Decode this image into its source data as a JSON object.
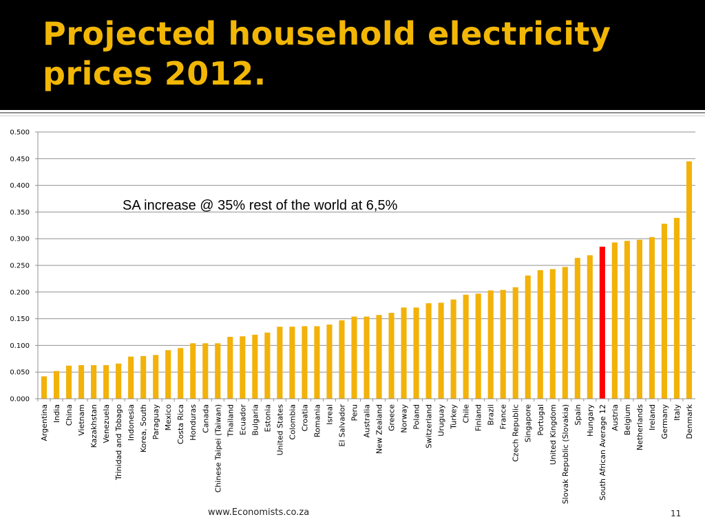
{
  "slide": {
    "title": "Projected household electricity prices 2012.",
    "annotation": "SA increase @ 35% rest of the world at 6,5%",
    "footer_url": "www.Economists.co.za",
    "page_number": "11"
  },
  "colors": {
    "bar": "#f2b20a",
    "highlight": "#ff0000",
    "title": "#f2b705",
    "title_background": "#000000"
  },
  "chart_data": {
    "type": "bar",
    "title": "",
    "xlabel": "",
    "ylabel": "",
    "ylim": [
      0,
      0.5
    ],
    "yticks": [
      "0.000",
      "0.050",
      "0.100",
      "0.150",
      "0.200",
      "0.250",
      "0.300",
      "0.350",
      "0.400",
      "0.450",
      "0.500"
    ],
    "grid": true,
    "highlight_category": "South African Average 12",
    "categories": [
      "Argentina",
      "India",
      "China",
      "Vietnam",
      "Kazakhstan",
      "Venezuela",
      "Trinidad and Tobago",
      "Indonesia",
      "Korea, South",
      "Paraguay",
      "Mexico",
      "Costa Rica",
      "Honduras",
      "Canada",
      "Chinese Taipei (Taiwan)",
      "Thailand",
      "Ecuador",
      "Bulgaria",
      "Estonia",
      "United States",
      "Colombia",
      "Croatia",
      "Romania",
      "Isreal",
      "El Salvador",
      "Peru",
      "Australia",
      "New Zealand",
      "Greece",
      "Norway",
      "Poland",
      "Switzerland",
      "Uruguay",
      "Turkey",
      "Chile",
      "Finland",
      "Brazil",
      "France",
      "Czech Republic",
      "Singapore",
      "Portugal",
      "United Kingdom",
      "Slovak Republic (Slovakia)",
      "Spain",
      "Hungary",
      "South African Average 12",
      "Austria",
      "Belgium",
      "Netherlands",
      "Ireland",
      "Germany",
      "Italy",
      "Denmark"
    ],
    "values": [
      0.042,
      0.052,
      0.062,
      0.063,
      0.063,
      0.063,
      0.066,
      0.079,
      0.08,
      0.082,
      0.091,
      0.095,
      0.104,
      0.104,
      0.104,
      0.116,
      0.117,
      0.12,
      0.124,
      0.135,
      0.135,
      0.136,
      0.136,
      0.139,
      0.147,
      0.154,
      0.154,
      0.157,
      0.161,
      0.171,
      0.171,
      0.179,
      0.18,
      0.186,
      0.195,
      0.197,
      0.203,
      0.204,
      0.209,
      0.231,
      0.241,
      0.243,
      0.247,
      0.264,
      0.269,
      0.285,
      0.293,
      0.296,
      0.298,
      0.303,
      0.328,
      0.339,
      0.445
    ]
  }
}
